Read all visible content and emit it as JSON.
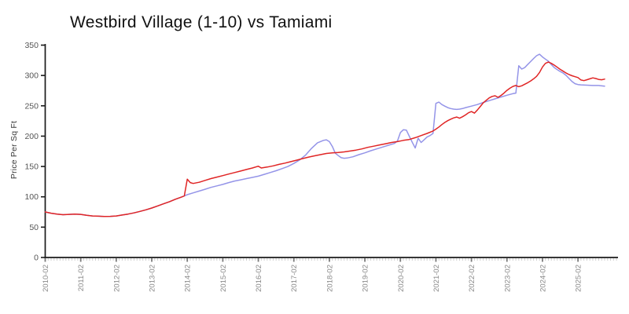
{
  "chart_data": {
    "type": "line",
    "title": "Westbird Village (1-10) vs Tamiami",
    "xlabel": "",
    "ylabel": "Price Per Sq Ft",
    "ylim": [
      0,
      350
    ],
    "y_ticks": [
      0,
      50,
      100,
      150,
      200,
      250,
      300,
      350
    ],
    "x_tick_labels": [
      "2010-02",
      "2011-02",
      "2012-02",
      "2013-02",
      "2014-02",
      "2015-02",
      "2016-02",
      "2017-02",
      "2018-02",
      "2019-02",
      "2020-02",
      "2021-02",
      "2022-02",
      "2023-02",
      "2024-02",
      "2025-02"
    ],
    "x_minor_ticks": "monthly",
    "x_axis_start": "2010-02",
    "grid": false,
    "legend": "none",
    "series": [
      {
        "name": "Westbird Village (1-10)",
        "color": "#9494e8",
        "points": [
          [
            "2010-02",
            75
          ],
          [
            "2010-04",
            73
          ],
          [
            "2010-06",
            71.5
          ],
          [
            "2010-08",
            70.5
          ],
          [
            "2010-10",
            71
          ],
          [
            "2010-12",
            71.5
          ],
          [
            "2011-02",
            71
          ],
          [
            "2011-04",
            69.5
          ],
          [
            "2011-06",
            68.5
          ],
          [
            "2011-08",
            68
          ],
          [
            "2011-10",
            67.5
          ],
          [
            "2011-12",
            67.8
          ],
          [
            "2012-02",
            68.5
          ],
          [
            "2012-04",
            70
          ],
          [
            "2012-06",
            71.5
          ],
          [
            "2012-08",
            73.5
          ],
          [
            "2012-10",
            76
          ],
          [
            "2012-12",
            78.5
          ],
          [
            "2013-02",
            81.5
          ],
          [
            "2013-04",
            85
          ],
          [
            "2013-06",
            88.5
          ],
          [
            "2013-08",
            92
          ],
          [
            "2013-10",
            96
          ],
          [
            "2013-12",
            99.5
          ],
          [
            "2014-01",
            101.5
          ],
          [
            "2014-02",
            103.5
          ],
          [
            "2014-04",
            106.5
          ],
          [
            "2014-06",
            109.5
          ],
          [
            "2014-08",
            112.5
          ],
          [
            "2014-10",
            115.5
          ],
          [
            "2014-12",
            118
          ],
          [
            "2015-02",
            120.5
          ],
          [
            "2015-04",
            123.5
          ],
          [
            "2015-06",
            126
          ],
          [
            "2015-08",
            128
          ],
          [
            "2015-10",
            130
          ],
          [
            "2015-12",
            132
          ],
          [
            "2016-02",
            134
          ],
          [
            "2016-04",
            137
          ],
          [
            "2016-06",
            140
          ],
          [
            "2016-08",
            143
          ],
          [
            "2016-10",
            146.5
          ],
          [
            "2016-12",
            150
          ],
          [
            "2017-02",
            155
          ],
          [
            "2017-04",
            161
          ],
          [
            "2017-06",
            169
          ],
          [
            "2017-08",
            180
          ],
          [
            "2017-10",
            189
          ],
          [
            "2017-12",
            193
          ],
          [
            "2018-01",
            194
          ],
          [
            "2018-02",
            191
          ],
          [
            "2018-03",
            183
          ],
          [
            "2018-04",
            172
          ],
          [
            "2018-05",
            168
          ],
          [
            "2018-06",
            164.5
          ],
          [
            "2018-07",
            163.5
          ],
          [
            "2018-08",
            164
          ],
          [
            "2018-10",
            166
          ],
          [
            "2018-12",
            169.5
          ],
          [
            "2019-02",
            172.5
          ],
          [
            "2019-04",
            176
          ],
          [
            "2019-06",
            179
          ],
          [
            "2019-08",
            182
          ],
          [
            "2019-10",
            185
          ],
          [
            "2019-12",
            188
          ],
          [
            "2020-01",
            192
          ],
          [
            "2020-02",
            206
          ],
          [
            "2020-03",
            210.5
          ],
          [
            "2020-04",
            210
          ],
          [
            "2020-05",
            200
          ],
          [
            "2020-06",
            190
          ],
          [
            "2020-07",
            180.5
          ],
          [
            "2020-08",
            196.5
          ],
          [
            "2020-09",
            189.5
          ],
          [
            "2020-10",
            194
          ],
          [
            "2020-11",
            198.5
          ],
          [
            "2020-12",
            201
          ],
          [
            "2021-01",
            204.5
          ],
          [
            "2021-02",
            254
          ],
          [
            "2021-03",
            256
          ],
          [
            "2021-04",
            252
          ],
          [
            "2021-05",
            249.5
          ],
          [
            "2021-06",
            247
          ],
          [
            "2021-07",
            245.5
          ],
          [
            "2021-08",
            244.5
          ],
          [
            "2021-09",
            244
          ],
          [
            "2021-10",
            244.5
          ],
          [
            "2021-11",
            245.5
          ],
          [
            "2021-12",
            247
          ],
          [
            "2022-02",
            249.5
          ],
          [
            "2022-04",
            252
          ],
          [
            "2022-06",
            255.5
          ],
          [
            "2022-08",
            258.5
          ],
          [
            "2022-10",
            261.5
          ],
          [
            "2022-12",
            264.5
          ],
          [
            "2023-02",
            267.5
          ],
          [
            "2023-04",
            270
          ],
          [
            "2023-05",
            271
          ],
          [
            "2023-06",
            316
          ],
          [
            "2023-07",
            310.5
          ],
          [
            "2023-08",
            313
          ],
          [
            "2023-09",
            318
          ],
          [
            "2023-10",
            323
          ],
          [
            "2023-11",
            328
          ],
          [
            "2023-12",
            332.5
          ],
          [
            "2024-01",
            335
          ],
          [
            "2024-02",
            330.5
          ],
          [
            "2024-03",
            327
          ],
          [
            "2024-04",
            323.5
          ],
          [
            "2024-05",
            318
          ],
          [
            "2024-06",
            313
          ],
          [
            "2024-07",
            309.5
          ],
          [
            "2024-08",
            306.5
          ],
          [
            "2024-09",
            304
          ],
          [
            "2024-10",
            300
          ],
          [
            "2024-11",
            295
          ],
          [
            "2024-12",
            290
          ],
          [
            "2025-01",
            286.5
          ],
          [
            "2025-02",
            285
          ],
          [
            "2025-03",
            284.5
          ],
          [
            "2025-05",
            284
          ],
          [
            "2025-07",
            283.5
          ],
          [
            "2025-09",
            283.5
          ],
          [
            "2025-11",
            282.5
          ]
        ]
      },
      {
        "name": "Tamiami",
        "color": "#e02525",
        "points": [
          [
            "2010-02",
            75
          ],
          [
            "2010-04",
            73
          ],
          [
            "2010-06",
            71.5
          ],
          [
            "2010-08",
            70.5
          ],
          [
            "2010-10",
            71
          ],
          [
            "2010-12",
            71.5
          ],
          [
            "2011-02",
            71
          ],
          [
            "2011-04",
            69.5
          ],
          [
            "2011-06",
            68.5
          ],
          [
            "2011-08",
            68
          ],
          [
            "2011-10",
            67.5
          ],
          [
            "2011-12",
            67.8
          ],
          [
            "2012-02",
            68.5
          ],
          [
            "2012-04",
            70
          ],
          [
            "2012-06",
            71.5
          ],
          [
            "2012-08",
            73.5
          ],
          [
            "2012-10",
            76
          ],
          [
            "2012-12",
            78.5
          ],
          [
            "2013-02",
            81.5
          ],
          [
            "2013-04",
            85
          ],
          [
            "2013-06",
            88.5
          ],
          [
            "2013-08",
            92
          ],
          [
            "2013-10",
            96
          ],
          [
            "2013-12",
            99.5
          ],
          [
            "2014-01",
            101.5
          ],
          [
            "2014-02",
            129
          ],
          [
            "2014-03",
            123.5
          ],
          [
            "2014-04",
            122
          ],
          [
            "2014-06",
            124
          ],
          [
            "2014-08",
            127
          ],
          [
            "2014-10",
            130
          ],
          [
            "2014-12",
            132.5
          ],
          [
            "2015-02",
            135
          ],
          [
            "2015-04",
            137.5
          ],
          [
            "2015-06",
            140
          ],
          [
            "2015-08",
            142.5
          ],
          [
            "2015-10",
            145
          ],
          [
            "2015-12",
            147.5
          ],
          [
            "2016-02",
            150.5
          ],
          [
            "2016-03",
            147.5
          ],
          [
            "2016-05",
            149
          ],
          [
            "2016-07",
            151
          ],
          [
            "2016-09",
            153.5
          ],
          [
            "2016-11",
            155.5
          ],
          [
            "2017-01",
            158
          ],
          [
            "2017-03",
            160.5
          ],
          [
            "2017-05",
            163
          ],
          [
            "2017-07",
            165.5
          ],
          [
            "2017-09",
            167.5
          ],
          [
            "2017-11",
            169.5
          ],
          [
            "2018-01",
            171.5
          ],
          [
            "2018-03",
            172.5
          ],
          [
            "2018-05",
            173
          ],
          [
            "2018-07",
            174
          ],
          [
            "2018-09",
            175.5
          ],
          [
            "2018-11",
            177
          ],
          [
            "2019-01",
            179
          ],
          [
            "2019-03",
            181.5
          ],
          [
            "2019-05",
            183.5
          ],
          [
            "2019-07",
            185.5
          ],
          [
            "2019-09",
            187.5
          ],
          [
            "2019-11",
            189.5
          ],
          [
            "2020-01",
            191
          ],
          [
            "2020-03",
            193
          ],
          [
            "2020-05",
            194.5
          ],
          [
            "2020-07",
            197.5
          ],
          [
            "2020-09",
            201
          ],
          [
            "2020-11",
            204.5
          ],
          [
            "2021-01",
            208.5
          ],
          [
            "2021-02",
            211.5
          ],
          [
            "2021-03",
            215
          ],
          [
            "2021-04",
            219
          ],
          [
            "2021-05",
            222.5
          ],
          [
            "2021-06",
            225.5
          ],
          [
            "2021-07",
            228
          ],
          [
            "2021-08",
            230
          ],
          [
            "2021-09",
            231.5
          ],
          [
            "2021-10",
            229.5
          ],
          [
            "2021-11",
            232
          ],
          [
            "2021-12",
            235
          ],
          [
            "2022-01",
            238.5
          ],
          [
            "2022-02",
            240.5
          ],
          [
            "2022-03",
            238
          ],
          [
            "2022-04",
            243
          ],
          [
            "2022-05",
            249
          ],
          [
            "2022-06",
            255
          ],
          [
            "2022-07",
            259
          ],
          [
            "2022-08",
            263
          ],
          [
            "2022-09",
            265.5
          ],
          [
            "2022-10",
            266.5
          ],
          [
            "2022-11",
            264
          ],
          [
            "2022-12",
            267
          ],
          [
            "2023-01",
            271
          ],
          [
            "2023-02",
            275.5
          ],
          [
            "2023-03",
            279
          ],
          [
            "2023-04",
            282
          ],
          [
            "2023-05",
            283.5
          ],
          [
            "2023-06",
            281.5
          ],
          [
            "2023-07",
            283
          ],
          [
            "2023-08",
            285.5
          ],
          [
            "2023-09",
            288
          ],
          [
            "2023-10",
            291
          ],
          [
            "2023-11",
            294.5
          ],
          [
            "2023-12",
            298.5
          ],
          [
            "2024-01",
            305
          ],
          [
            "2024-02",
            314
          ],
          [
            "2024-03",
            320
          ],
          [
            "2024-04",
            322
          ],
          [
            "2024-05",
            320
          ],
          [
            "2024-06",
            317
          ],
          [
            "2024-07",
            313.5
          ],
          [
            "2024-08",
            310
          ],
          [
            "2024-09",
            307
          ],
          [
            "2024-10",
            304
          ],
          [
            "2024-11",
            301.5
          ],
          [
            "2024-12",
            299.5
          ],
          [
            "2025-01",
            298
          ],
          [
            "2025-02",
            296.5
          ],
          [
            "2025-03",
            292.5
          ],
          [
            "2025-04",
            291.5
          ],
          [
            "2025-05",
            293
          ],
          [
            "2025-06",
            294.5
          ],
          [
            "2025-07",
            296
          ],
          [
            "2025-08",
            295
          ],
          [
            "2025-09",
            293.5
          ],
          [
            "2025-10",
            293
          ],
          [
            "2025-11",
            294
          ]
        ]
      }
    ],
    "colors": {
      "axis": "#1a1a1a",
      "major_tick": "#7a7a7a",
      "minor_tick": "#cccccc",
      "x_tick_label": "#8a8a8a",
      "y_tick_label": "#555555",
      "title": "#111111"
    }
  }
}
